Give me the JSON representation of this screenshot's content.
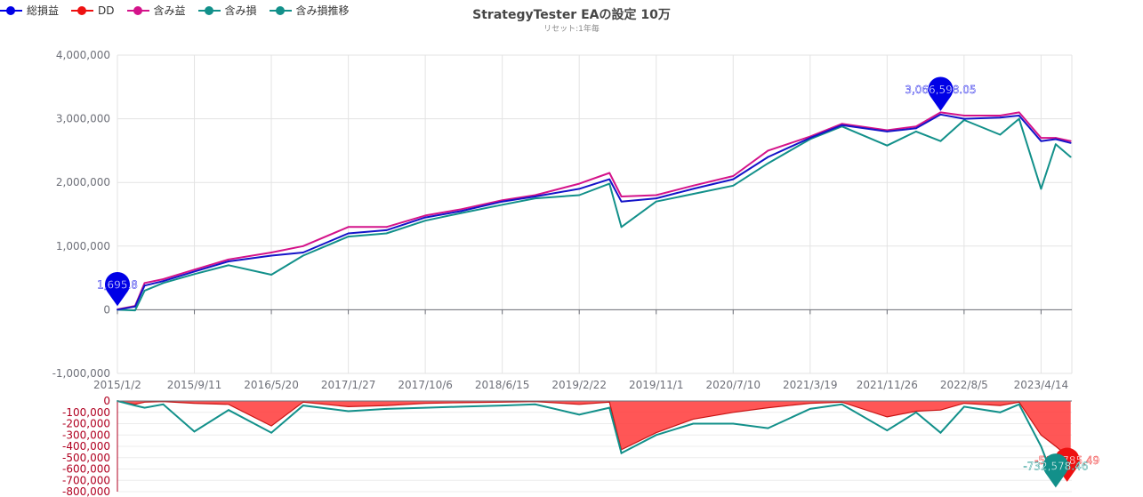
{
  "title": "StrategyTester EAの設定 10万",
  "subtitle": "リセット:1年毎",
  "legend": [
    {
      "label": "総損益",
      "color": "#0000e6"
    },
    {
      "label": "DD",
      "color": "#ee1111"
    },
    {
      "label": "含み益",
      "color": "#d4138a"
    },
    {
      "label": "含み損",
      "color": "#12908a"
    },
    {
      "label": "含み損推移",
      "color": "#12908a"
    }
  ],
  "colors": {
    "total": "#1414c8",
    "dd_fill": "#ff4444",
    "dd_line": "#c81414",
    "unrealized_gain": "#d4138a",
    "unrealized_loss": "#12908a",
    "bubble_blue": "#0000e6",
    "bubble_red": "#ee1111",
    "bubble_teal": "#12908a"
  },
  "chart_data": [
    {
      "type": "line",
      "panel": "main",
      "x_tick_labels": [
        "2015/1/2",
        "2015/9/11",
        "2016/5/20",
        "2017/1/27",
        "2017/10/6",
        "2018/6/15",
        "2019/2/22",
        "2019/11/1",
        "2020/7/10",
        "2021/3/19",
        "2021/11/26",
        "2022/8/5",
        "2023/4/14"
      ],
      "x": [
        "2015/1/2",
        "2015/3/1",
        "2015/4/1",
        "2015/6/1",
        "2015/9/11",
        "2016/1/1",
        "2016/5/20",
        "2016/9/1",
        "2017/1/27",
        "2017/6/1",
        "2017/10/6",
        "2018/2/1",
        "2018/6/15",
        "2018/10/1",
        "2019/2/22",
        "2019/6/1",
        "2019/7/10",
        "2019/11/1",
        "2020/3/1",
        "2020/7/10",
        "2020/11/1",
        "2021/3/19",
        "2021/7/1",
        "2021/11/26",
        "2022/3/1",
        "2022/5/20",
        "2022/8/5",
        "2022/12/1",
        "2023/2/1",
        "2023/4/14",
        "2023/6/1",
        "2023/7/20"
      ],
      "series": [
        {
          "name": "総損益",
          "values": [
            1695.8,
            50000,
            380000,
            450000,
            600000,
            760000,
            850000,
            900000,
            1200000,
            1250000,
            1450000,
            1550000,
            1700000,
            1780000,
            1900000,
            2050000,
            1700000,
            1750000,
            1900000,
            2050000,
            2400000,
            2700000,
            2900000,
            2800000,
            2850000,
            3066598.05,
            3000000,
            3020000,
            3050000,
            2650000,
            2680000,
            2620000
          ]
        },
        {
          "name": "含み益",
          "values": [
            5000,
            60000,
            420000,
            480000,
            630000,
            790000,
            900000,
            1000000,
            1300000,
            1300000,
            1480000,
            1580000,
            1720000,
            1800000,
            1980000,
            2150000,
            1780000,
            1800000,
            1950000,
            2100000,
            2500000,
            2720000,
            2920000,
            2820000,
            2880000,
            3100000,
            3050000,
            3050000,
            3100000,
            2700000,
            2700000,
            2650000
          ]
        },
        {
          "name": "含み損",
          "values": [
            0,
            -10000,
            300000,
            420000,
            560000,
            700000,
            550000,
            850000,
            1150000,
            1200000,
            1400000,
            1520000,
            1650000,
            1750000,
            1800000,
            1980000,
            1300000,
            1700000,
            1820000,
            1950000,
            2300000,
            2680000,
            2880000,
            2580000,
            2800000,
            2650000,
            2980000,
            2750000,
            3000000,
            1900000,
            2600000,
            2400000
          ]
        }
      ],
      "ylim": [
        -1000000,
        4000000
      ],
      "y_tick_labels": [
        "4,000,000",
        "3,000,000",
        "2,000,000",
        "1,000,000",
        "0",
        "-1,000,000"
      ],
      "grid": true,
      "legend_position": "top-left",
      "annotations": [
        {
          "series": "総損益",
          "label": "1,695.8",
          "x": "2015/1/2",
          "y": 1695.8
        },
        {
          "series": "総損益",
          "label": "3,066,598.05",
          "x": "2022/5/20",
          "y": 3066598.05
        }
      ]
    },
    {
      "type": "area",
      "panel": "drawdown",
      "x": [
        "2015/1/2",
        "2015/3/1",
        "2015/4/1",
        "2015/6/1",
        "2015/9/11",
        "2016/1/1",
        "2016/5/20",
        "2016/9/1",
        "2017/1/27",
        "2017/6/1",
        "2017/10/6",
        "2018/2/1",
        "2018/6/15",
        "2018/10/1",
        "2019/2/22",
        "2019/6/1",
        "2019/7/10",
        "2019/11/1",
        "2020/3/1",
        "2020/7/10",
        "2020/11/1",
        "2021/3/19",
        "2021/7/1",
        "2021/11/26",
        "2022/3/1",
        "2022/5/20",
        "2022/8/5",
        "2022/12/1",
        "2023/2/1",
        "2023/4/14",
        "2023/6/1",
        "2023/7/20"
      ],
      "series": [
        {
          "name": "DD",
          "values": [
            0,
            -30000,
            -10000,
            -5000,
            -20000,
            -30000,
            -220000,
            -10000,
            -50000,
            -40000,
            -20000,
            -15000,
            -10000,
            -5000,
            -30000,
            -10000,
            -430000,
            -280000,
            -160000,
            -100000,
            -60000,
            -20000,
            -10000,
            -140000,
            -90000,
            -80000,
            -20000,
            -40000,
            -10000,
            -300000,
            -400000,
            -508785.49
          ]
        },
        {
          "name": "含み損推移",
          "values": [
            0,
            -40000,
            -60000,
            -30000,
            -270000,
            -80000,
            -280000,
            -40000,
            -90000,
            -70000,
            -60000,
            -50000,
            -40000,
            -30000,
            -120000,
            -60000,
            -460000,
            -300000,
            -200000,
            -200000,
            -240000,
            -70000,
            -30000,
            -260000,
            -100000,
            -280000,
            -50000,
            -100000,
            -30000,
            -400000,
            -732578.46,
            -450000
          ]
        }
      ],
      "ylim": [
        -800000,
        0
      ],
      "y_tick_labels": [
        "0",
        "-100,000",
        "-200,000",
        "-300,000",
        "-400,000",
        "-500,000",
        "-600,000",
        "-700,000",
        "-800,000"
      ],
      "grid": true,
      "annotations": [
        {
          "series": "DD",
          "label": "-508,785.49",
          "x": "2023/7/20",
          "y": -508785.49
        },
        {
          "series": "含み損推移",
          "label": "-732,578.46",
          "x": "2023/6/1",
          "y": -732578.46
        }
      ]
    }
  ]
}
